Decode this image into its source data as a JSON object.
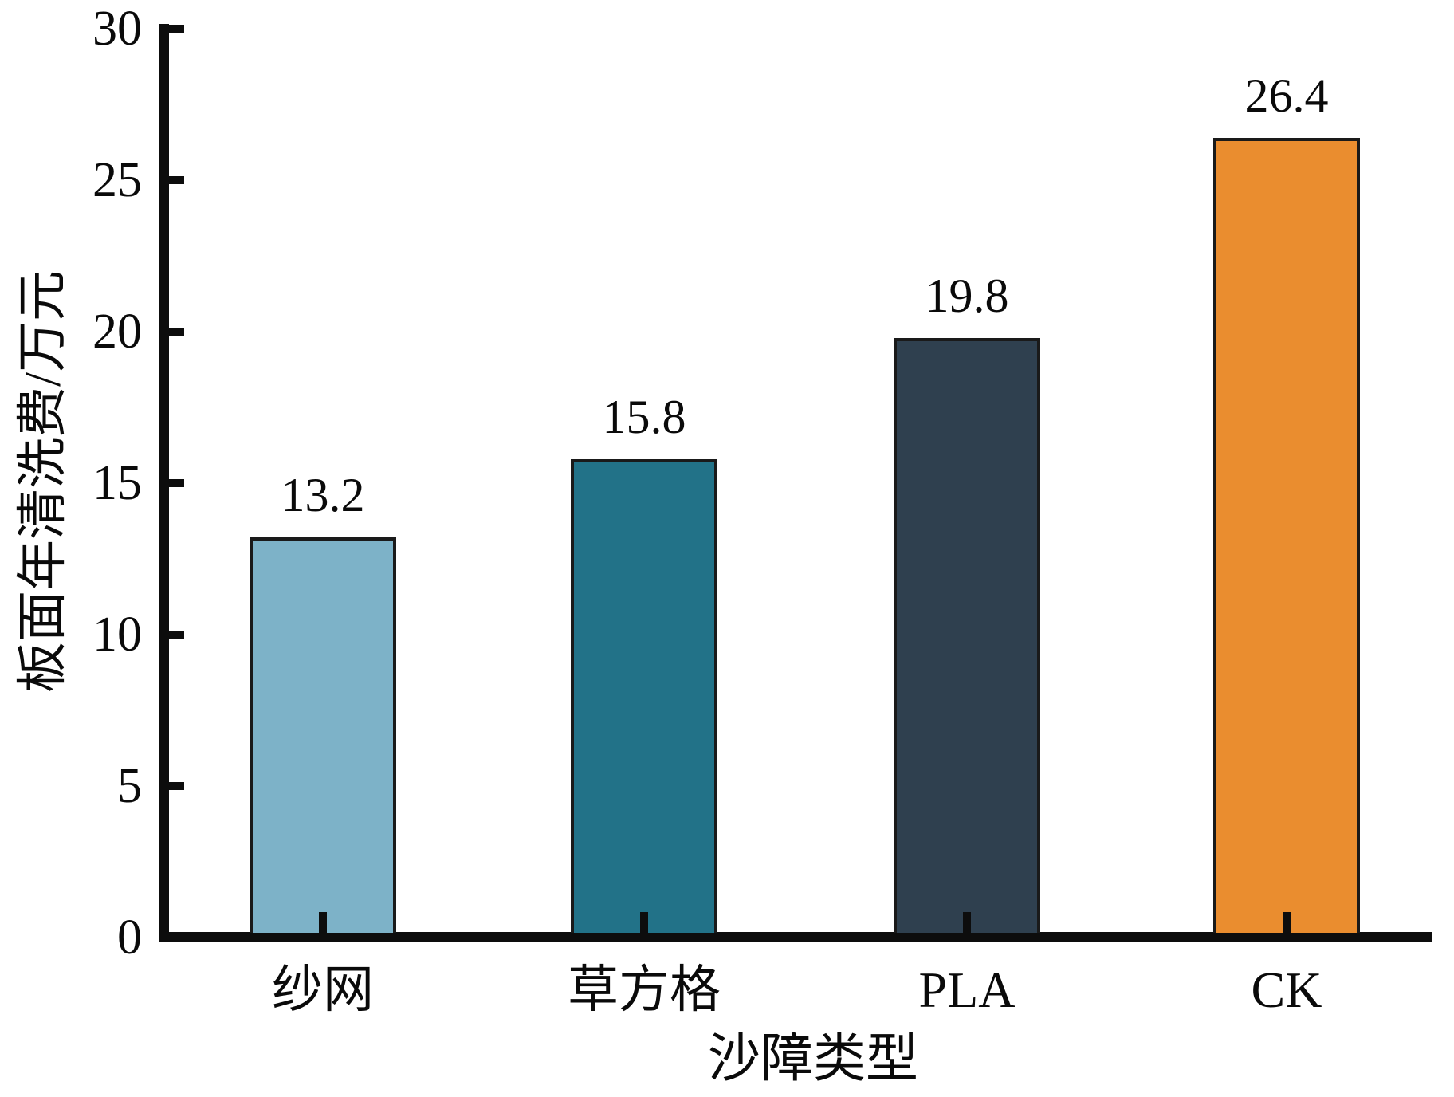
{
  "chart_data": {
    "type": "bar",
    "title": "",
    "categories": [
      "纱网",
      "草方格",
      "PLA",
      "CK"
    ],
    "values": [
      13.2,
      15.8,
      19.8,
      26.4
    ],
    "value_labels": [
      "13.2",
      "15.8",
      "19.8",
      "26.4"
    ],
    "bar_colors": [
      "#7db2c8",
      "#227288",
      "#2f404f",
      "#ea8d2f"
    ],
    "bar_edge_color": "#1a1a1a",
    "xlabel": "沙障类型",
    "ylabel": "板面年清洗费/万元",
    "ylim": [
      0,
      30
    ],
    "yticks": [
      0,
      5,
      10,
      15,
      20,
      25,
      30
    ],
    "ytick_labels": [
      "0",
      "5",
      "10",
      "15",
      "20",
      "25",
      "30"
    ],
    "grid": false,
    "legend": null,
    "axis_color": "#0d0d0d",
    "text_color": "#0a0a0a"
  }
}
